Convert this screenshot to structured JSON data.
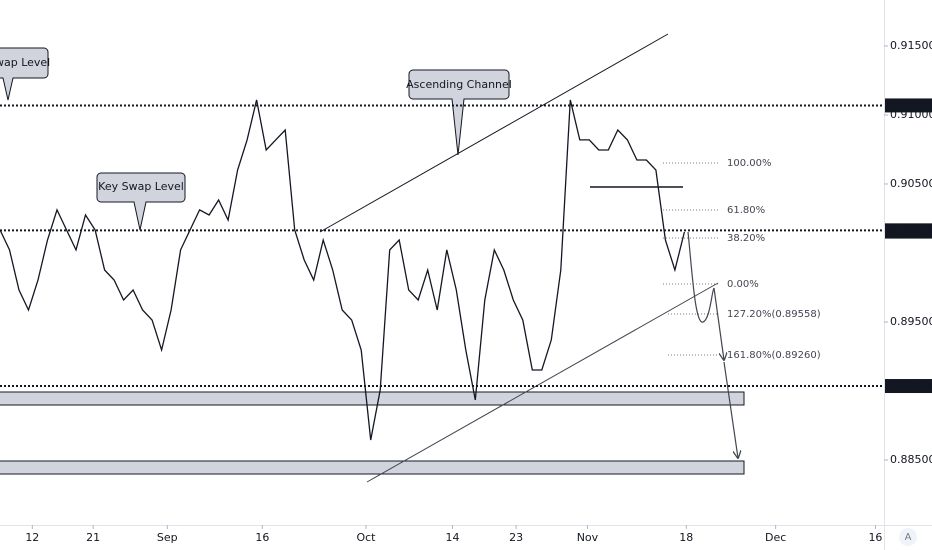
{
  "chart_data": {
    "type": "line",
    "color": "#131722",
    "x": [
      0,
      1,
      2,
      3,
      4,
      5,
      6,
      7,
      8,
      9,
      10,
      11,
      12,
      13,
      14,
      15,
      16,
      17,
      18,
      19,
      20,
      21,
      22,
      23,
      24,
      25,
      26,
      27,
      28,
      29,
      30,
      31,
      32,
      33,
      34,
      35,
      36,
      37,
      38,
      39,
      40,
      41,
      42,
      43,
      44,
      45,
      46,
      47,
      48,
      49,
      50,
      51,
      52,
      53,
      54,
      55,
      56,
      57,
      58,
      59,
      60,
      61,
      62,
      63,
      64,
      65,
      66,
      67,
      68,
      69,
      70,
      71,
      72
    ],
    "values": [
      0.90167,
      0.90022,
      0.89732,
      0.89587,
      0.89804,
      0.90094,
      0.90312,
      0.90167,
      0.90022,
      0.90275,
      0.90167,
      0.89877,
      0.89804,
      0.89659,
      0.89732,
      0.89587,
      0.89514,
      0.89297,
      0.89587,
      0.90022,
      0.90167,
      0.90312,
      0.90275,
      0.90384,
      0.90239,
      0.90601,
      0.90819,
      0.91109,
      0.90746,
      0.90819,
      0.90891,
      0.90167,
      0.89949,
      0.89804,
      0.90094,
      0.89877,
      0.89587,
      0.89514,
      0.89297,
      0.88645,
      0.89007,
      0.90022,
      0.90094,
      0.89732,
      0.89659,
      0.89877,
      0.89587,
      0.90022,
      0.89732,
      0.89297,
      0.88935,
      0.89659,
      0.90022,
      0.89877,
      0.89659,
      0.89514,
      0.89152,
      0.89152,
      0.8937,
      0.89877,
      0.91109,
      0.90819,
      0.90819,
      0.90746,
      0.90746,
      0.90891,
      0.90819,
      0.90674,
      0.90674,
      0.90601,
      0.90094,
      0.89877,
      0.90152
    ],
    "xlim": [
      0,
      93
    ],
    "ylim": [
      0.88029,
      0.91833
    ],
    "xticks": [
      {
        "value": 3.4,
        "label": "12"
      },
      {
        "value": 9.8,
        "label": "21"
      },
      {
        "value": 17.6,
        "label": "Sep"
      },
      {
        "value": 27.6,
        "label": "16"
      },
      {
        "value": 38.5,
        "label": "Oct"
      },
      {
        "value": 47.6,
        "label": "14"
      },
      {
        "value": 54.3,
        "label": "23"
      },
      {
        "value": 61.8,
        "label": "Nov"
      },
      {
        "value": 72.2,
        "label": "18"
      },
      {
        "value": 81.6,
        "label": "Dec"
      },
      {
        "value": 92.1,
        "label": "16"
      }
    ],
    "yticks": [
      {
        "value": 0.915,
        "label": "0.91500"
      },
      {
        "value": 0.91,
        "label": "0.91000"
      },
      {
        "value": 0.905,
        "label": "0.90500"
      },
      {
        "value": 0.895,
        "label": "0.89500"
      },
      {
        "value": 0.885,
        "label": "0.88500"
      }
    ],
    "price_levels": [
      0.91069,
      0.90164,
      0.89036
    ],
    "last_price": 0.90155,
    "fib_labels": [
      "100.00%",
      "61.80%",
      "38.20%",
      "0.00%",
      "127.20%(0.89558)",
      "161.80%(0.89260)"
    ],
    "annotations": [
      "Swap Level",
      "Key Swap Level",
      "Ascending Channel"
    ],
    "watermark": "A",
    "grid": false
  }
}
